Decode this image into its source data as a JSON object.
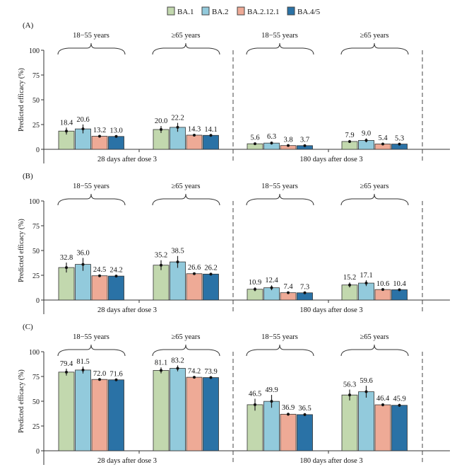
{
  "legend": {
    "placement": "top-center",
    "entries": [
      {
        "label": "BA.1",
        "color": "#c2d8ae"
      },
      {
        "label": "BA.2",
        "color": "#92cadc"
      },
      {
        "label": "BA.2.12.1",
        "color": "#eeaa96"
      },
      {
        "label": "BA.4/5",
        "color": "#2a72a6"
      }
    ]
  },
  "chart_data": [
    {
      "type": "bar",
      "panel_label": "(A)",
      "ylabel": "Predicted efficacy (%)",
      "ylim": [
        0,
        100
      ],
      "yticks": [
        "0",
        "25",
        "50",
        "75",
        "100"
      ],
      "timepoints": [
        "28 days after dose 3",
        "180 days after dose 3"
      ],
      "age_groups": [
        "18−55 years",
        "≥65 years",
        "18−55 years",
        "≥65 years"
      ],
      "series_names": [
        "BA.1",
        "BA.2",
        "BA.2.12.1",
        "BA.4/5"
      ],
      "values": [
        [
          18.4,
          20.6,
          13.2,
          13.0
        ],
        [
          20.0,
          22.2,
          14.3,
          14.1
        ],
        [
          5.6,
          6.3,
          3.8,
          3.7
        ],
        [
          7.9,
          9.0,
          5.4,
          5.3
        ]
      ],
      "error_halfwidth": [
        [
          3.5,
          4.5,
          1.0,
          1.0
        ],
        [
          3.5,
          4.5,
          1.0,
          1.0
        ],
        [
          1.2,
          1.5,
          0.8,
          0.8
        ],
        [
          1.5,
          2.0,
          0.9,
          0.9
        ]
      ],
      "labels": [
        [
          "18.4",
          "20.6",
          "13.2",
          "13.0"
        ],
        [
          "20.0",
          "22.2",
          "14.3",
          "14.1"
        ],
        [
          "5.6",
          "6.3",
          "3.8",
          "3.7"
        ],
        [
          "7.9",
          "9.0",
          "5.4",
          "5.3"
        ]
      ]
    },
    {
      "type": "bar",
      "panel_label": "(B)",
      "ylabel": "Predicted efficacy (%)",
      "ylim": [
        0,
        100
      ],
      "yticks": [
        "0",
        "25",
        "50",
        "75",
        "100"
      ],
      "timepoints": [
        "28 days after dose 3",
        "180 days after dose 3"
      ],
      "age_groups": [
        "18−55 years",
        "≥65 years",
        "18−55 years",
        "≥65 years"
      ],
      "series_names": [
        "BA.1",
        "BA.2",
        "BA.2.12.1",
        "BA.4/5"
      ],
      "values": [
        [
          32.8,
          36.0,
          24.5,
          24.2
        ],
        [
          35.2,
          38.5,
          26.6,
          26.2
        ],
        [
          10.9,
          12.4,
          7.4,
          7.3
        ],
        [
          15.2,
          17.1,
          10.6,
          10.4
        ]
      ],
      "error_halfwidth": [
        [
          5.0,
          6.5,
          1.2,
          1.2
        ],
        [
          5.0,
          6.0,
          1.2,
          1.2
        ],
        [
          2.0,
          2.5,
          1.0,
          1.0
        ],
        [
          2.5,
          3.0,
          1.0,
          1.0
        ]
      ],
      "labels": [
        [
          "32.8",
          "36.0",
          "24.5",
          "24.2"
        ],
        [
          "35.2",
          "38.5",
          "26.6",
          "26.2"
        ],
        [
          "10.9",
          "12.4",
          "7.4",
          "7.3"
        ],
        [
          "15.2",
          "17.1",
          "10.6",
          "10.4"
        ]
      ]
    },
    {
      "type": "bar",
      "panel_label": "(C)",
      "ylabel": "Predicted efficacy (%)",
      "ylim": [
        0,
        100
      ],
      "yticks": [
        "0",
        "25",
        "50",
        "75",
        "100"
      ],
      "timepoints": [
        "28 days after dose 3",
        "180 days after dose 3"
      ],
      "age_groups": [
        "18−55 years",
        "≥65 years",
        "18−55 years",
        "≥65 years"
      ],
      "series_names": [
        "BA.1",
        "BA.2",
        "BA.2.12.1",
        "BA.4/5"
      ],
      "values": [
        [
          79.4,
          81.5,
          72.0,
          71.6
        ],
        [
          81.1,
          83.2,
          74.2,
          73.9
        ],
        [
          46.5,
          49.9,
          36.9,
          36.5
        ],
        [
          56.3,
          59.6,
          46.4,
          45.9
        ]
      ],
      "error_halfwidth": [
        [
          3.5,
          3.5,
          1.0,
          1.0
        ],
        [
          3.0,
          3.0,
          1.0,
          1.0
        ],
        [
          6.0,
          6.5,
          1.5,
          1.5
        ],
        [
          5.5,
          6.0,
          1.5,
          1.5
        ]
      ],
      "labels": [
        [
          "79.4",
          "81.5",
          "72.0",
          "71.6"
        ],
        [
          "81.1",
          "83.2",
          "74.2",
          "73.9"
        ],
        [
          "46.5",
          "49.9",
          "36.9",
          "36.5"
        ],
        [
          "56.3",
          "59.6",
          "46.4",
          "45.9"
        ]
      ]
    }
  ]
}
